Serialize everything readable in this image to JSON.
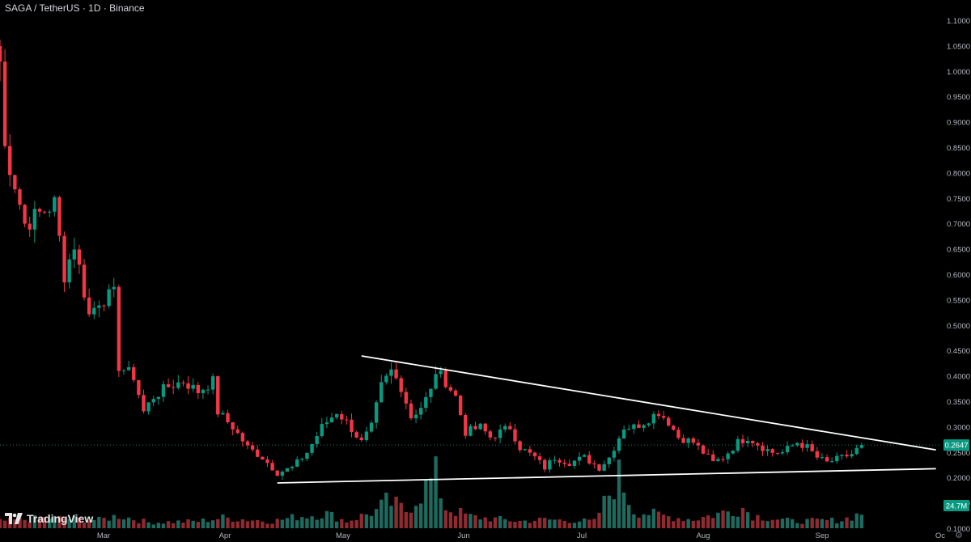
{
  "header": {
    "symbol": "SAGA / TetherUS · 1D · Binance"
  },
  "branding": {
    "logo_text": "TradingView"
  },
  "colors": {
    "up": "#089981",
    "down": "#f23645",
    "up_volume": "#1d6a5f",
    "down_volume": "#8e2a30",
    "background": "#000000",
    "price_label": "#089981"
  },
  "chart_data": {
    "type": "candlestick",
    "title": "SAGA / TetherUS · 1D · Binance",
    "price_axis": {
      "ticks": [
        "1.1000",
        "1.0500",
        "1.0000",
        "0.9500",
        "0.9000",
        "0.8500",
        "0.8000",
        "0.7500",
        "0.7000",
        "0.6500",
        "0.6000",
        "0.5500",
        "0.5000",
        "0.4500",
        "0.4000",
        "0.3500",
        "0.3000",
        "0.2500",
        "0.2000",
        "0.1500",
        "0.1000"
      ],
      "range": [
        0.1,
        1.1
      ]
    },
    "time_axis": {
      "ticks": [
        "Mar",
        "Apr",
        "May",
        "Jun",
        "Jul",
        "Aug",
        "Sep",
        "Oc"
      ]
    },
    "current_price": "0.2647",
    "current_volume": "24.7M",
    "trendlines": [
      {
        "name": "descending resistance",
        "from": {
          "day": 73,
          "price": 0.44
        },
        "to": {
          "day": 189,
          "price": 0.255
        }
      },
      {
        "name": "ascending support",
        "from": {
          "day": 56,
          "price": 0.19
        },
        "to": {
          "day": 189,
          "price": 0.218
        }
      }
    ],
    "close_path": [
      [
        0,
        1.02
      ],
      [
        1,
        0.85
      ],
      [
        3,
        0.78
      ],
      [
        5,
        0.7
      ],
      [
        8,
        0.72
      ],
      [
        11,
        0.74
      ],
      [
        13,
        0.6
      ],
      [
        15,
        0.66
      ],
      [
        18,
        0.52
      ],
      [
        20,
        0.55
      ],
      [
        23,
        0.56
      ],
      [
        24,
        0.42
      ],
      [
        27,
        0.4
      ],
      [
        29,
        0.33
      ],
      [
        31,
        0.36
      ],
      [
        34,
        0.38
      ],
      [
        37,
        0.39
      ],
      [
        40,
        0.37
      ],
      [
        43,
        0.39
      ],
      [
        44,
        0.33
      ],
      [
        47,
        0.3
      ],
      [
        50,
        0.26
      ],
      [
        53,
        0.24
      ],
      [
        56,
        0.21
      ],
      [
        59,
        0.22
      ],
      [
        62,
        0.25
      ],
      [
        65,
        0.3
      ],
      [
        68,
        0.33
      ],
      [
        70,
        0.31
      ],
      [
        73,
        0.27
      ],
      [
        75,
        0.3
      ],
      [
        77,
        0.38
      ],
      [
        79,
        0.41
      ],
      [
        81,
        0.38
      ],
      [
        83,
        0.32
      ],
      [
        85,
        0.34
      ],
      [
        87,
        0.37
      ],
      [
        88,
        0.41
      ],
      [
        90,
        0.39
      ],
      [
        92,
        0.36
      ],
      [
        94,
        0.29
      ],
      [
        97,
        0.3
      ],
      [
        99,
        0.28
      ],
      [
        101,
        0.29
      ],
      [
        103,
        0.3
      ],
      [
        105,
        0.26
      ],
      [
        108,
        0.24
      ],
      [
        110,
        0.22
      ],
      [
        112,
        0.24
      ],
      [
        115,
        0.23
      ],
      [
        118,
        0.24
      ],
      [
        121,
        0.22
      ],
      [
        123,
        0.24
      ],
      [
        126,
        0.3
      ],
      [
        128,
        0.3
      ],
      [
        130,
        0.31
      ],
      [
        133,
        0.33
      ],
      [
        135,
        0.31
      ],
      [
        137,
        0.28
      ],
      [
        140,
        0.27
      ],
      [
        142,
        0.25
      ],
      [
        144,
        0.23
      ],
      [
        146,
        0.24
      ],
      [
        149,
        0.27
      ],
      [
        151,
        0.28
      ],
      [
        154,
        0.26
      ],
      [
        156,
        0.25
      ],
      [
        158,
        0.25
      ],
      [
        161,
        0.27
      ],
      [
        163,
        0.26
      ],
      [
        165,
        0.24
      ],
      [
        167,
        0.23
      ],
      [
        170,
        0.24
      ],
      [
        172,
        0.247
      ],
      [
        174,
        0.2647
      ]
    ],
    "volume_path": [
      [
        0,
        12
      ],
      [
        10,
        18
      ],
      [
        20,
        14
      ],
      [
        24,
        22
      ],
      [
        30,
        10
      ],
      [
        40,
        12
      ],
      [
        45,
        18
      ],
      [
        55,
        12
      ],
      [
        60,
        20
      ],
      [
        66,
        25
      ],
      [
        70,
        12
      ],
      [
        76,
        30
      ],
      [
        78,
        45
      ],
      [
        80,
        40
      ],
      [
        82,
        30
      ],
      [
        88,
        90
      ],
      [
        90,
        35
      ],
      [
        95,
        20
      ],
      [
        105,
        12
      ],
      [
        110,
        15
      ],
      [
        120,
        12
      ],
      [
        125,
        90
      ],
      [
        128,
        30
      ],
      [
        135,
        20
      ],
      [
        140,
        15
      ],
      [
        150,
        35
      ],
      [
        152,
        22
      ],
      [
        160,
        12
      ],
      [
        170,
        14
      ],
      [
        174,
        26
      ]
    ]
  }
}
